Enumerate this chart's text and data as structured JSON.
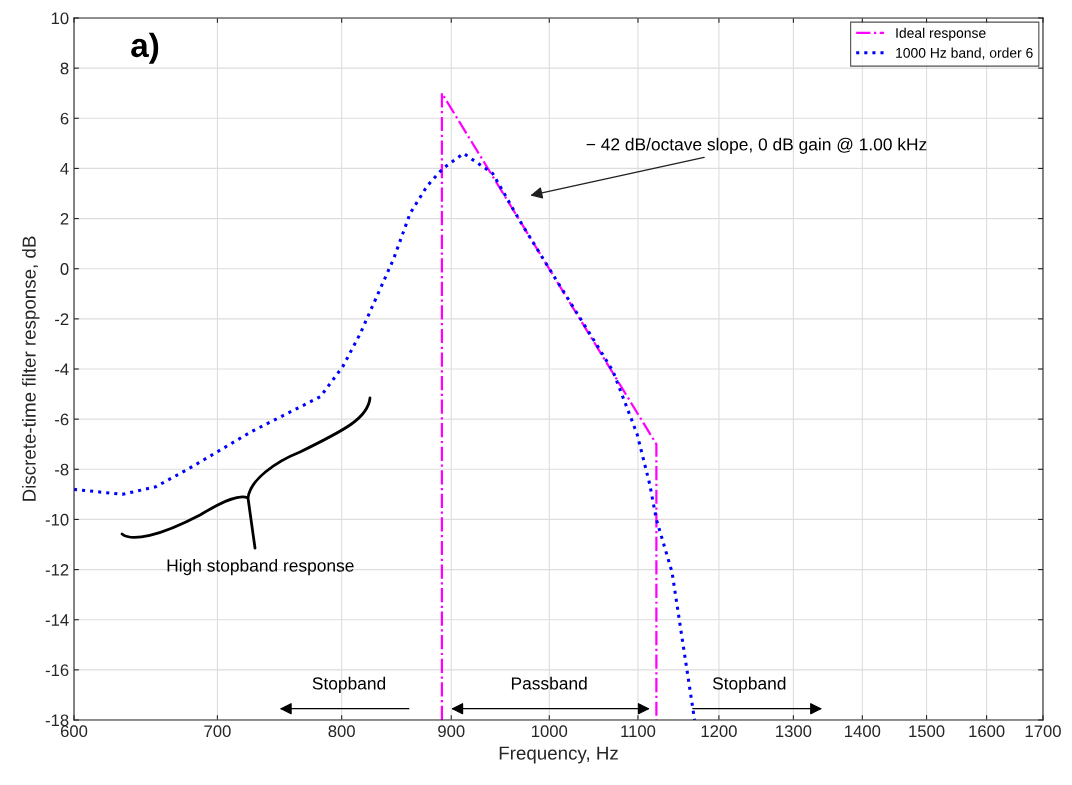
{
  "chart_data": {
    "type": "line",
    "xlabel": "Frequency, Hz",
    "ylabel": "Discrete-time filter response, dB",
    "log": "x",
    "xlim": [
      600,
      1700
    ],
    "xticks": [
      600,
      700,
      800,
      900,
      1000,
      1100,
      1200,
      1300,
      1400,
      1500,
      1600,
      1700
    ],
    "ylim": [
      -18,
      10
    ],
    "yticks": [
      -18,
      -16,
      -14,
      -12,
      -10,
      -8,
      -6,
      -4,
      -2,
      0,
      2,
      4,
      6,
      8,
      10
    ],
    "grid": true,
    "legend": "top right",
    "series": [
      {
        "name": "Ideal response",
        "color": "#ff00ff",
        "line_style": "dashdot",
        "x": [
          891,
          891,
          1122,
          1122
        ],
        "values": [
          -18,
          7,
          -7,
          -18
        ]
      },
      {
        "name": "1000 Hz band, order 6",
        "color": "#0000ff",
        "line_style": "dotted",
        "x": [
          600,
          632,
          655,
          678,
          726,
          782,
          801,
          816,
          846,
          861,
          877,
          892,
          912,
          941,
          969,
          1000,
          1057,
          1071,
          1099,
          1114,
          1122,
          1141,
          1169
        ],
        "values": [
          -8.8,
          -9.0,
          -8.7,
          -8.0,
          -6.5,
          -5.1,
          -3.9,
          -2.6,
          0.4,
          2.2,
          3.3,
          4.0,
          4.6,
          3.8,
          1.9,
          0.0,
          -3.3,
          -4.1,
          -6.6,
          -8.6,
          -10.0,
          -12.1,
          -18.0
        ]
      }
    ],
    "annotations": [
      "a)",
      "− 42 dB/octave slope, 0 dB gain @ 1.00 kHz",
      "High stopband response",
      "Stopband",
      "Passband",
      "Stopband"
    ]
  }
}
